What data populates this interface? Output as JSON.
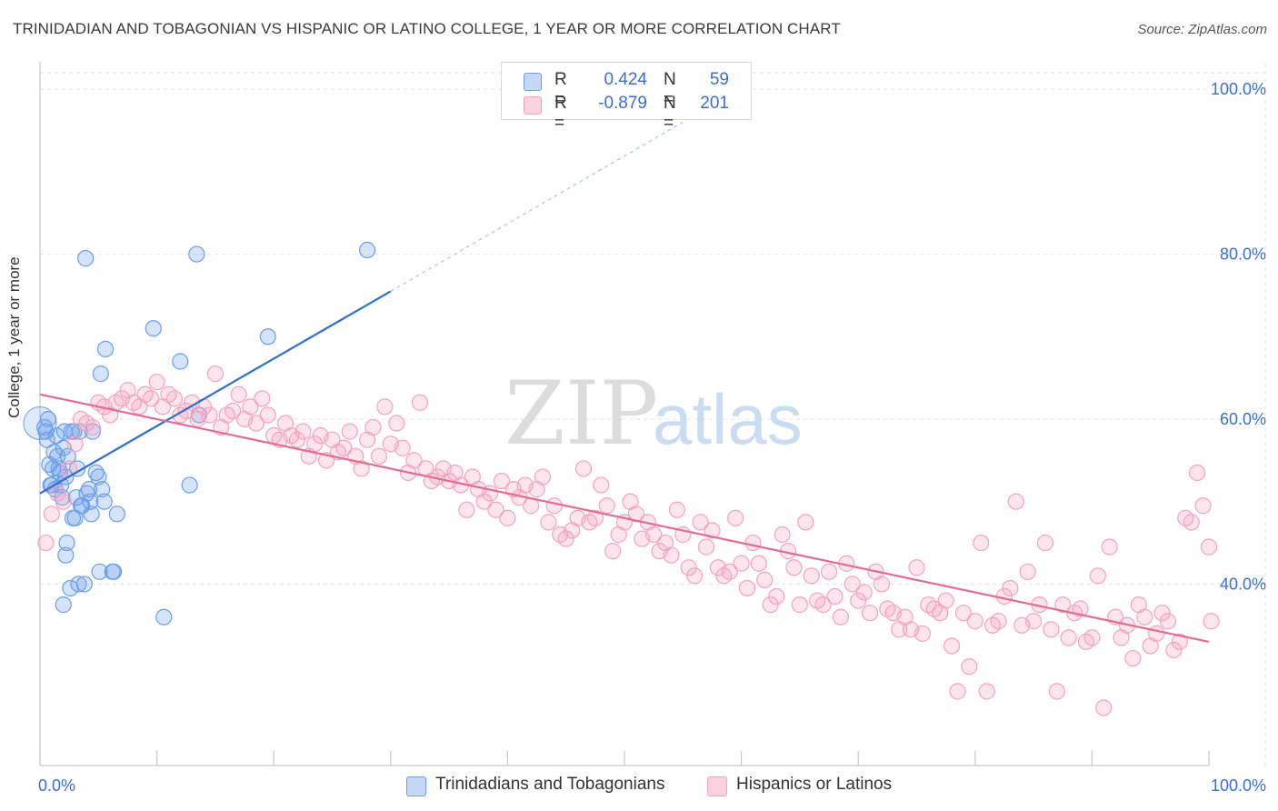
{
  "title": "TRINIDADIAN AND TOBAGONIAN VS HISPANIC OR LATINO COLLEGE, 1 YEAR OR MORE CORRELATION CHART",
  "source": "Source: ZipAtlas.com",
  "watermark": {
    "zip": "ZIP",
    "atlas": "atlas"
  },
  "stats": [
    {
      "r_label": "R =",
      "r_value": "0.424",
      "n_label": "N =",
      "n_value": "59",
      "color": "#6d9eeb"
    },
    {
      "r_label": "R =",
      "r_value": "-0.879",
      "n_label": "N =",
      "n_value": "201",
      "color": "#f4a3bd"
    }
  ],
  "chart_data": {
    "type": "scatter",
    "title": "TRINIDADIAN AND TOBAGONIAN VS HISPANIC OR LATINO COLLEGE, 1 YEAR OR MORE CORRELATION CHART",
    "xlabel": "",
    "ylabel": "College, 1 year or more",
    "xlim": [
      0,
      100
    ],
    "ylim": [
      18,
      102
    ],
    "x_tick_labels": [
      "0.0%",
      "100.0%"
    ],
    "y_ticks": [
      40,
      60,
      80,
      100
    ],
    "y_tick_labels": [
      "40.0%",
      "60.0%",
      "80.0%",
      "100.0%"
    ],
    "grid": true,
    "legend_position": "bottom",
    "series": [
      {
        "name": "Trinidadians and Tobagonians",
        "color": "#6d9eeb",
        "line_color": "#2f6fcf",
        "trend": {
          "x0": 0,
          "y0": 51.0,
          "x1": 30,
          "y1": 75.5,
          "dashed_to_x": 55,
          "dashed_to_y": 96
        },
        "points": [
          [
            0.4,
            59.0
          ],
          [
            0.5,
            58.5
          ],
          [
            0.6,
            57.5
          ],
          [
            0.8,
            54.5
          ],
          [
            1.0,
            52.0
          ],
          [
            1.2,
            56.0
          ],
          [
            1.3,
            51.5
          ],
          [
            1.5,
            55.5
          ],
          [
            1.6,
            54.0
          ],
          [
            1.7,
            53.5
          ],
          [
            1.9,
            50.5
          ],
          [
            2.0,
            56.5
          ],
          [
            2.1,
            58.5
          ],
          [
            2.2,
            53.0
          ],
          [
            2.3,
            45.0
          ],
          [
            2.2,
            43.5
          ],
          [
            2.6,
            39.5
          ],
          [
            2.9,
            58.5
          ],
          [
            2.8,
            48.0
          ],
          [
            3.1,
            50.5
          ],
          [
            3.2,
            54.0
          ],
          [
            3.3,
            40.0
          ],
          [
            3.4,
            58.5
          ],
          [
            3.5,
            49.5
          ],
          [
            3.8,
            40.0
          ],
          [
            3.9,
            79.5
          ],
          [
            4.2,
            51.5
          ],
          [
            4.3,
            50.0
          ],
          [
            4.4,
            48.5
          ],
          [
            4.5,
            58.5
          ],
          [
            4.8,
            53.5
          ],
          [
            5.0,
            53.0
          ],
          [
            5.1,
            41.5
          ],
          [
            5.2,
            65.5
          ],
          [
            5.3,
            51.5
          ],
          [
            5.5,
            50.0
          ],
          [
            5.6,
            68.5
          ],
          [
            6.2,
            41.5
          ],
          [
            6.3,
            41.5
          ],
          [
            6.6,
            48.5
          ],
          [
            9.7,
            71.0
          ],
          [
            10.6,
            36.0
          ],
          [
            12.0,
            67.0
          ],
          [
            12.8,
            52.0
          ],
          [
            13.4,
            80.0
          ],
          [
            13.6,
            60.5
          ],
          [
            19.5,
            70.0
          ],
          [
            28.0,
            80.5
          ],
          [
            2.0,
            37.5
          ],
          [
            1.4,
            58.0
          ],
          [
            0.7,
            60.0
          ],
          [
            2.4,
            55.5
          ],
          [
            1.1,
            54.0
          ],
          [
            0.9,
            52.0
          ],
          [
            3.0,
            48.0
          ],
          [
            2.7,
            58.5
          ],
          [
            4.0,
            51.0
          ],
          [
            1.8,
            52.0
          ],
          [
            3.6,
            49.5
          ]
        ]
      },
      {
        "name": "Hispanics or Latinos",
        "color": "#f4a3bd",
        "line_color": "#e46a98",
        "trend": {
          "x0": 0,
          "y0": 63.0,
          "x1": 100,
          "y1": 33.0
        },
        "points": [
          [
            0.5,
            45.0
          ],
          [
            1.0,
            48.5
          ],
          [
            1.5,
            51.0
          ],
          [
            2.0,
            50.0
          ],
          [
            2.5,
            54.0
          ],
          [
            3.0,
            57.0
          ],
          [
            3.5,
            60.0
          ],
          [
            4.0,
            59.5
          ],
          [
            4.5,
            59.0
          ],
          [
            5.0,
            62.0
          ],
          [
            5.5,
            61.5
          ],
          [
            6.0,
            60.5
          ],
          [
            6.5,
            62.0
          ],
          [
            7.0,
            62.5
          ],
          [
            7.5,
            63.5
          ],
          [
            8.0,
            62.0
          ],
          [
            8.5,
            61.5
          ],
          [
            9.0,
            63.0
          ],
          [
            9.5,
            62.5
          ],
          [
            10.0,
            64.5
          ],
          [
            10.5,
            61.5
          ],
          [
            11.0,
            63.0
          ],
          [
            11.5,
            62.5
          ],
          [
            12.0,
            60.5
          ],
          [
            12.5,
            61.0
          ],
          [
            13.0,
            62.0
          ],
          [
            13.5,
            60.0
          ],
          [
            14.0,
            61.5
          ],
          [
            14.5,
            60.5
          ],
          [
            15.0,
            65.5
          ],
          [
            15.5,
            59.0
          ],
          [
            16.0,
            60.5
          ],
          [
            16.5,
            61.0
          ],
          [
            17.0,
            63.0
          ],
          [
            17.5,
            60.0
          ],
          [
            18.0,
            61.5
          ],
          [
            18.5,
            59.5
          ],
          [
            19.0,
            62.5
          ],
          [
            19.5,
            60.5
          ],
          [
            20.0,
            58.0
          ],
          [
            20.5,
            57.5
          ],
          [
            21.0,
            59.5
          ],
          [
            21.5,
            58.0
          ],
          [
            22.0,
            57.5
          ],
          [
            22.5,
            58.5
          ],
          [
            23.0,
            55.5
          ],
          [
            23.5,
            57.0
          ],
          [
            24.0,
            58.0
          ],
          [
            24.5,
            55.0
          ],
          [
            25.0,
            57.5
          ],
          [
            25.5,
            56.0
          ],
          [
            26.0,
            56.5
          ],
          [
            26.5,
            58.5
          ],
          [
            27.0,
            55.5
          ],
          [
            27.5,
            54.0
          ],
          [
            28.0,
            57.5
          ],
          [
            28.5,
            59.0
          ],
          [
            29.0,
            55.5
          ],
          [
            29.5,
            61.5
          ],
          [
            30.0,
            57.0
          ],
          [
            30.5,
            59.5
          ],
          [
            31.0,
            56.5
          ],
          [
            31.5,
            53.5
          ],
          [
            32.0,
            55.0
          ],
          [
            32.5,
            62.0
          ],
          [
            33.0,
            54.0
          ],
          [
            33.5,
            52.5
          ],
          [
            34.0,
            53.0
          ],
          [
            34.5,
            54.0
          ],
          [
            35.0,
            52.5
          ],
          [
            35.5,
            53.5
          ],
          [
            36.0,
            52.0
          ],
          [
            36.5,
            49.0
          ],
          [
            37.0,
            53.0
          ],
          [
            37.5,
            51.5
          ],
          [
            38.0,
            50.0
          ],
          [
            38.5,
            51.0
          ],
          [
            39.0,
            49.0
          ],
          [
            39.5,
            52.5
          ],
          [
            40.0,
            48.0
          ],
          [
            40.5,
            51.5
          ],
          [
            41.0,
            50.5
          ],
          [
            41.5,
            52.0
          ],
          [
            42.0,
            49.5
          ],
          [
            42.5,
            51.5
          ],
          [
            43.0,
            53.0
          ],
          [
            43.5,
            47.5
          ],
          [
            44.0,
            49.5
          ],
          [
            44.5,
            46.0
          ],
          [
            45.0,
            45.5
          ],
          [
            45.5,
            46.5
          ],
          [
            46.0,
            48.0
          ],
          [
            46.5,
            54.0
          ],
          [
            47.0,
            47.5
          ],
          [
            47.5,
            48.0
          ],
          [
            48.0,
            52.0
          ],
          [
            48.5,
            49.5
          ],
          [
            49.0,
            44.0
          ],
          [
            49.5,
            46.0
          ],
          [
            50.0,
            47.5
          ],
          [
            50.5,
            50.0
          ],
          [
            51.0,
            48.5
          ],
          [
            51.5,
            45.5
          ],
          [
            52.0,
            47.5
          ],
          [
            52.5,
            46.0
          ],
          [
            53.0,
            44.0
          ],
          [
            53.5,
            45.0
          ],
          [
            54.0,
            43.5
          ],
          [
            54.5,
            49.0
          ],
          [
            55.0,
            46.0
          ],
          [
            55.5,
            42.0
          ],
          [
            56.0,
            41.0
          ],
          [
            56.5,
            47.5
          ],
          [
            57.0,
            44.5
          ],
          [
            57.5,
            46.5
          ],
          [
            58.0,
            42.0
          ],
          [
            58.5,
            41.0
          ],
          [
            59.0,
            41.5
          ],
          [
            59.5,
            48.0
          ],
          [
            60.0,
            42.5
          ],
          [
            60.5,
            39.5
          ],
          [
            61.0,
            45.0
          ],
          [
            61.5,
            42.5
          ],
          [
            62.0,
            40.5
          ],
          [
            62.5,
            37.5
          ],
          [
            63.0,
            38.5
          ],
          [
            63.5,
            46.0
          ],
          [
            64.0,
            44.0
          ],
          [
            64.5,
            42.0
          ],
          [
            65.0,
            37.5
          ],
          [
            65.5,
            47.5
          ],
          [
            66.0,
            41.0
          ],
          [
            66.5,
            38.0
          ],
          [
            67.0,
            37.5
          ],
          [
            67.5,
            41.5
          ],
          [
            68.0,
            38.5
          ],
          [
            68.5,
            36.0
          ],
          [
            69.0,
            42.5
          ],
          [
            69.5,
            40.0
          ],
          [
            70.0,
            38.0
          ],
          [
            70.5,
            39.0
          ],
          [
            71.0,
            36.5
          ],
          [
            71.5,
            41.5
          ],
          [
            72.0,
            40.0
          ],
          [
            72.5,
            37.0
          ],
          [
            73.0,
            36.5
          ],
          [
            73.5,
            34.5
          ],
          [
            74.0,
            36.0
          ],
          [
            74.5,
            34.5
          ],
          [
            75.0,
            42.0
          ],
          [
            75.5,
            34.0
          ],
          [
            76.0,
            37.5
          ],
          [
            76.5,
            37.0
          ],
          [
            77.0,
            36.5
          ],
          [
            77.5,
            38.0
          ],
          [
            78.0,
            32.5
          ],
          [
            78.5,
            27.0
          ],
          [
            79.0,
            36.5
          ],
          [
            79.5,
            30.0
          ],
          [
            80.0,
            35.5
          ],
          [
            80.5,
            45.0
          ],
          [
            81.0,
            27.0
          ],
          [
            81.5,
            35.0
          ],
          [
            82.0,
            35.5
          ],
          [
            82.5,
            38.5
          ],
          [
            83.0,
            39.5
          ],
          [
            83.5,
            50.0
          ],
          [
            84.0,
            35.0
          ],
          [
            84.5,
            41.5
          ],
          [
            85.0,
            35.5
          ],
          [
            85.5,
            37.5
          ],
          [
            86.0,
            45.0
          ],
          [
            86.5,
            34.5
          ],
          [
            87.0,
            27.0
          ],
          [
            87.5,
            37.5
          ],
          [
            88.0,
            33.5
          ],
          [
            88.5,
            36.5
          ],
          [
            89.0,
            37.0
          ],
          [
            89.5,
            33.0
          ],
          [
            90.0,
            33.5
          ],
          [
            90.5,
            41.0
          ],
          [
            91.0,
            25.0
          ],
          [
            91.5,
            44.5
          ],
          [
            92.0,
            36.0
          ],
          [
            92.5,
            33.5
          ],
          [
            93.0,
            35.0
          ],
          [
            93.5,
            31.0
          ],
          [
            94.0,
            37.5
          ],
          [
            94.5,
            36.0
          ],
          [
            95.0,
            32.5
          ],
          [
            95.5,
            34.0
          ],
          [
            96.0,
            36.5
          ],
          [
            96.5,
            35.5
          ],
          [
            97.0,
            32.0
          ],
          [
            97.5,
            33.0
          ],
          [
            98.0,
            48.0
          ],
          [
            98.5,
            47.5
          ],
          [
            99.0,
            53.5
          ],
          [
            99.5,
            49.5
          ],
          [
            100.0,
            44.5
          ],
          [
            100.2,
            35.5
          ]
        ]
      }
    ]
  }
}
